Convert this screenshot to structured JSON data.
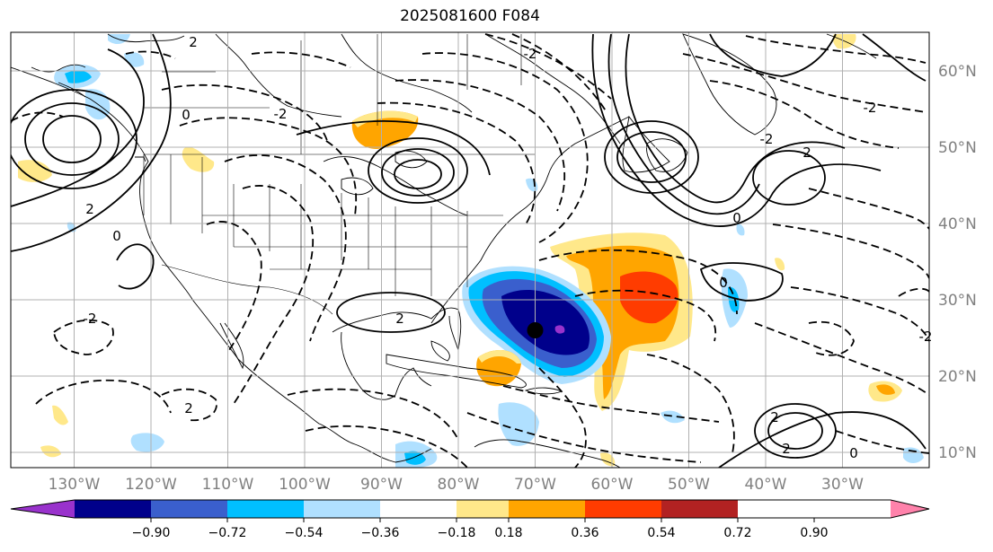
{
  "title": "2025081600 F084",
  "map": {
    "lat_labels": [
      "60°N",
      "50°N",
      "40°N",
      "30°N",
      "20°N",
      "10°N"
    ],
    "lat_values": [
      60,
      50,
      40,
      30,
      20,
      10
    ],
    "lon_labels": [
      "130°W",
      "120°W",
      "110°W",
      "100°W",
      "90°W",
      "80°W",
      "70°W",
      "60°W",
      "50°W",
      "40°W",
      "30°W"
    ],
    "lon_values": [
      -130,
      -120,
      -110,
      -100,
      -90,
      -80,
      -70,
      -60,
      -50,
      -40,
      -30
    ],
    "gridlines": true,
    "storm_marker": {
      "lon": -70,
      "lat": 26,
      "label": ""
    },
    "contour_labels": [
      "2",
      "0",
      "-2",
      "2",
      "0",
      "-2",
      "2",
      "2",
      "-2",
      "0",
      "-2",
      "2",
      "-2",
      "0",
      "2",
      "0",
      "2",
      "-2"
    ]
  },
  "colorbar": {
    "ticks": [
      "−0.90",
      "−0.72",
      "−0.54",
      "−0.36",
      "−0.18",
      "0.18",
      "0.36",
      "0.54",
      "0.72",
      "0.90"
    ],
    "colors": [
      "#9932cc",
      "#00008b",
      "#3a5fcd",
      "#00bfff",
      "#b0e0ff",
      "#ffffff",
      "#ffe88a",
      "#ffa500",
      "#ff3c00",
      "#b22222",
      "#ff82ab"
    ]
  }
}
